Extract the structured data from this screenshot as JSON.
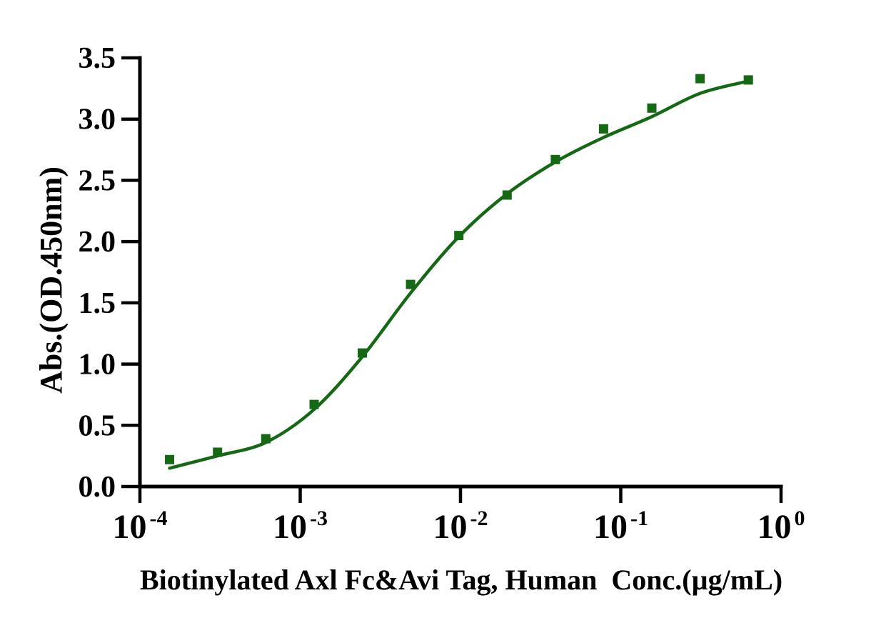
{
  "chart_data": {
    "type": "scatter",
    "title": "",
    "xlabel": "Biotinylated Axl Fc&Avi Tag, Human  Conc.(µg/mL)",
    "ylabel": "Abs.(OD.450nm)",
    "x_scale": "log10",
    "xlim_log10": [
      -4,
      0
    ],
    "ylim": [
      0.0,
      3.5
    ],
    "grid": false,
    "legend": false,
    "axis_color": "#000000",
    "y_ticks": [
      {
        "value": 0.0,
        "label": "0.0"
      },
      {
        "value": 0.5,
        "label": "0.5"
      },
      {
        "value": 1.0,
        "label": "1.0"
      },
      {
        "value": 1.5,
        "label": "1.5"
      },
      {
        "value": 2.0,
        "label": "2.0"
      },
      {
        "value": 2.5,
        "label": "2.5"
      },
      {
        "value": 3.0,
        "label": "3.0"
      },
      {
        "value": 3.5,
        "label": "3.5"
      }
    ],
    "x_ticks": [
      {
        "base": "10",
        "exp": "-4"
      },
      {
        "base": "10",
        "exp": "-3"
      },
      {
        "base": "10",
        "exp": "-2"
      },
      {
        "base": "10",
        "exp": "-1"
      },
      {
        "base": "10",
        "exp": "0"
      }
    ],
    "series": [
      {
        "name": "Biotinylated Axl Fc&Avi Tag, Human",
        "marker": "square",
        "marker_size": 13,
        "color": "#156915",
        "points": [
          {
            "x": 0.000153,
            "y": 0.22
          },
          {
            "x": 0.000305,
            "y": 0.28
          },
          {
            "x": 0.00061,
            "y": 0.39
          },
          {
            "x": 0.001221,
            "y": 0.67
          },
          {
            "x": 0.002441,
            "y": 1.09
          },
          {
            "x": 0.004883,
            "y": 1.65
          },
          {
            "x": 0.009766,
            "y": 2.05
          },
          {
            "x": 0.019531,
            "y": 2.38
          },
          {
            "x": 0.039063,
            "y": 2.67
          },
          {
            "x": 0.078125,
            "y": 2.92
          },
          {
            "x": 0.15625,
            "y": 3.09
          },
          {
            "x": 0.3125,
            "y": 3.33
          },
          {
            "x": 0.625,
            "y": 3.32
          }
        ]
      }
    ],
    "fit_curve": {
      "name": "4PL fit",
      "color": "#156915",
      "stroke_width": 4.5,
      "points": [
        {
          "x": 0.000153,
          "y": 0.15
        },
        {
          "x": 0.000305,
          "y": 0.25
        },
        {
          "x": 0.00061,
          "y": 0.36
        },
        {
          "x": 0.001221,
          "y": 0.63
        },
        {
          "x": 0.002441,
          "y": 1.06
        },
        {
          "x": 0.004883,
          "y": 1.58
        },
        {
          "x": 0.009766,
          "y": 2.04
        },
        {
          "x": 0.019531,
          "y": 2.39
        },
        {
          "x": 0.039063,
          "y": 2.65
        },
        {
          "x": 0.078125,
          "y": 2.85
        },
        {
          "x": 0.15625,
          "y": 3.02
        },
        {
          "x": 0.3125,
          "y": 3.21
        },
        {
          "x": 0.625,
          "y": 3.31
        }
      ]
    }
  }
}
